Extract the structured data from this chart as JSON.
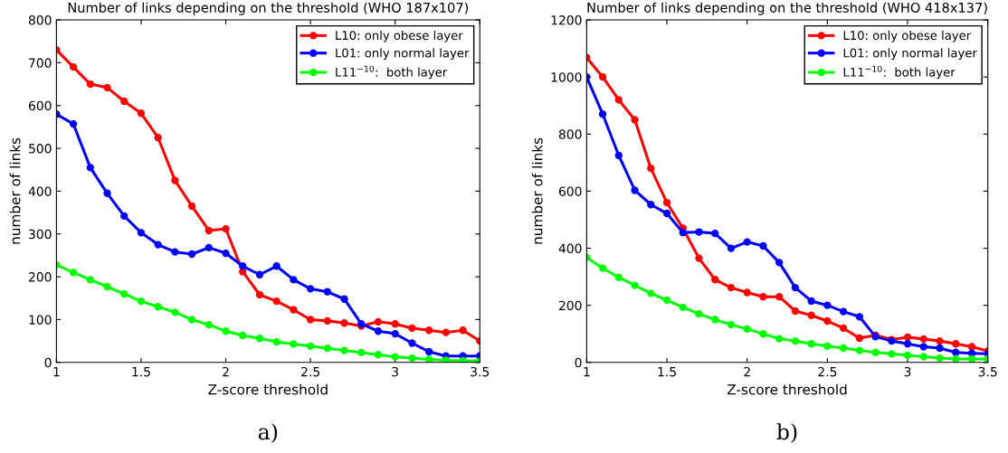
{
  "chart_data": [
    {
      "type": "line",
      "title": "Number of links depending on the threshold (WHO 187x107)",
      "xlabel": "Z-score threshold",
      "ylabel": "number of links",
      "annotations": [
        "a)"
      ],
      "x": [
        1,
        1.1,
        1.2,
        1.3,
        1.4,
        1.5,
        1.6,
        1.7,
        1.8,
        1.9,
        2,
        2.1,
        2.2,
        2.3,
        2.4,
        2.5,
        2.6,
        2.7,
        2.8,
        2.9,
        3,
        3.1,
        3.2,
        3.3,
        3.4,
        3.5
      ],
      "xlim": [
        1,
        3.5
      ],
      "xticks": [
        1,
        1.5,
        2,
        2.5,
        3,
        3.5
      ],
      "ylim": [
        0,
        800
      ],
      "yticks": [
        0,
        100,
        200,
        300,
        400,
        500,
        600,
        700,
        800
      ],
      "marker": "circle",
      "line_style": "solid",
      "legend": "top right",
      "grid": false,
      "series": [
        {
          "name": "L10: only obese layer",
          "color": "#ff0000",
          "values": [
            730,
            690,
            650,
            642,
            610,
            582,
            525,
            425,
            365,
            308,
            312,
            212,
            158,
            143,
            123,
            100,
            97,
            92,
            85,
            95,
            90,
            80,
            75,
            70,
            75,
            50
          ]
        },
        {
          "name": "L01: only normal layer",
          "color": "#0000ff",
          "values": [
            580,
            557,
            455,
            395,
            342,
            303,
            275,
            258,
            253,
            268,
            255,
            225,
            205,
            225,
            193,
            172,
            165,
            148,
            90,
            73,
            67,
            45,
            25,
            15,
            15,
            15
          ]
        },
        {
          "name": "L11$^{−10}$:  both layer",
          "color": "#00ff00",
          "values": [
            228,
            210,
            193,
            177,
            160,
            143,
            130,
            117,
            100,
            88,
            73,
            63,
            56,
            48,
            43,
            38,
            33,
            28,
            23,
            18,
            13,
            10,
            7,
            5,
            4,
            3
          ]
        }
      ]
    },
    {
      "type": "line",
      "title": "Number of links depending on the threshold (WHO 418x137)",
      "xlabel": "Z-score threshold",
      "ylabel": "number of links",
      "annotations": [
        "b)"
      ],
      "x": [
        1,
        1.1,
        1.2,
        1.3,
        1.4,
        1.5,
        1.6,
        1.7,
        1.8,
        1.9,
        2,
        2.1,
        2.2,
        2.3,
        2.4,
        2.5,
        2.6,
        2.7,
        2.8,
        2.9,
        3,
        3.1,
        3.2,
        3.3,
        3.4,
        3.5
      ],
      "xlim": [
        1,
        3.5
      ],
      "xticks": [
        1,
        1.5,
        2,
        2.5,
        3,
        3.5
      ],
      "ylim": [
        0,
        1200
      ],
      "yticks": [
        0,
        200,
        400,
        600,
        800,
        1000,
        1200
      ],
      "marker": "circle",
      "line_style": "solid",
      "legend": "top right",
      "grid": false,
      "series": [
        {
          "name": "L10: only obese layer",
          "color": "#ff0000",
          "values": [
            1068,
            1000,
            920,
            850,
            680,
            560,
            470,
            365,
            290,
            262,
            245,
            230,
            230,
            180,
            165,
            145,
            120,
            85,
            95,
            80,
            88,
            82,
            75,
            65,
            55,
            40
          ]
        },
        {
          "name": "L01: only normal layer",
          "color": "#0000ff",
          "values": [
            1000,
            870,
            725,
            603,
            553,
            522,
            455,
            457,
            452,
            400,
            422,
            408,
            350,
            262,
            215,
            200,
            178,
            160,
            90,
            75,
            65,
            55,
            50,
            35,
            32,
            30
          ]
        },
        {
          "name": "L11$^{−10}$:  both layer",
          "color": "#00ff00",
          "values": [
            368,
            330,
            298,
            270,
            242,
            218,
            193,
            170,
            150,
            132,
            117,
            100,
            83,
            75,
            65,
            57,
            50,
            42,
            35,
            30,
            25,
            20,
            15,
            12,
            12,
            12
          ]
        }
      ]
    }
  ]
}
